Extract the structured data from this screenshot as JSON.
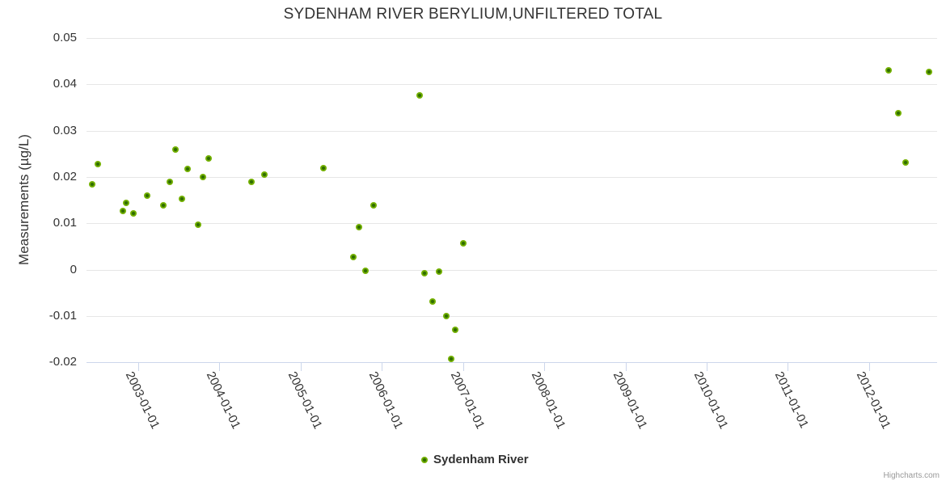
{
  "chart": {
    "credits_label": "Highcharts.com"
  },
  "colors": {
    "marker_outer": "#74b100",
    "marker_inner": "#2f6d00",
    "gridline": "#e6e6e6",
    "axis_line": "#ccd6eb",
    "text": "#333333",
    "credits_text": "#999999"
  },
  "chart_data": {
    "type": "scatter",
    "title": "SYDENHAM RIVER BERYLIUM,UNFILTERED TOTAL",
    "xlabel": "",
    "ylabel": "Measurements (µg/L)",
    "grid": true,
    "legend_position": "bottom-center",
    "ylim": [
      -0.02,
      0.05
    ],
    "y_ticks": [
      0.05,
      0.04,
      0.03,
      0.02,
      0.01,
      0,
      -0.01,
      -0.02
    ],
    "y_tick_labels": [
      "0.05",
      "0.04",
      "0.03",
      "0.02",
      "0.01",
      "0",
      "-0.01",
      "-0.02"
    ],
    "x_tick_years": [
      2003,
      2004,
      2005,
      2006,
      2007,
      2008,
      2009,
      2010,
      2011,
      2012
    ],
    "x_tick_labels": [
      "2003-01-01",
      "2004-01-01",
      "2005-01-01",
      "2006-01-01",
      "2007-01-01",
      "2008-01-01",
      "2009-01-01",
      "2010-01-01",
      "2011-01-01",
      "2012-01-01"
    ],
    "x_unit": "decimal_year",
    "series": [
      {
        "name": "Sydenham River",
        "color": "#74b100",
        "points": [
          [
            2002.43,
            0.0184
          ],
          [
            2002.5,
            0.0228
          ],
          [
            2002.81,
            0.0127
          ],
          [
            2002.85,
            0.0144
          ],
          [
            2002.94,
            0.0122
          ],
          [
            2003.11,
            0.0161
          ],
          [
            2003.31,
            0.014
          ],
          [
            2003.39,
            0.0189
          ],
          [
            2003.46,
            0.026
          ],
          [
            2003.54,
            0.0153
          ],
          [
            2003.61,
            0.0218
          ],
          [
            2003.74,
            0.0097
          ],
          [
            2003.8,
            0.02
          ],
          [
            2003.87,
            0.0241
          ],
          [
            2004.39,
            0.0189
          ],
          [
            2004.55,
            0.0205
          ],
          [
            2005.28,
            0.022
          ],
          [
            2005.65,
            0.0027
          ],
          [
            2005.72,
            0.0092
          ],
          [
            2005.8,
            -0.0002
          ],
          [
            2005.9,
            0.014
          ],
          [
            2006.46,
            0.0377
          ],
          [
            2006.52,
            -0.0008
          ],
          [
            2006.62,
            -0.0068
          ],
          [
            2006.7,
            -0.0004
          ],
          [
            2006.79,
            -0.01
          ],
          [
            2006.85,
            -0.0193
          ],
          [
            2006.9,
            -0.013
          ],
          [
            2007.0,
            0.0057
          ],
          [
            2012.24,
            0.043
          ],
          [
            2012.36,
            0.0339
          ],
          [
            2012.45,
            0.0231
          ],
          [
            2012.74,
            0.0427
          ]
        ]
      }
    ]
  }
}
